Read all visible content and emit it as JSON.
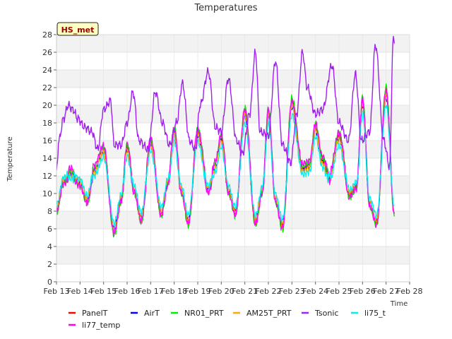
{
  "chart_data": {
    "type": "line",
    "title": "Temperatures",
    "station_label": "HS_met",
    "xlabel": "Time",
    "ylabel": "Temperature",
    "xlim": [
      13,
      28
    ],
    "ylim": [
      0,
      28
    ],
    "yticks": [
      0,
      2,
      4,
      6,
      8,
      10,
      12,
      14,
      16,
      18,
      20,
      22,
      24,
      26,
      28
    ],
    "xticks": [
      {
        "value": 13,
        "label": "Feb 13"
      },
      {
        "value": 14,
        "label": "Feb 14"
      },
      {
        "value": 15,
        "label": "Feb 15"
      },
      {
        "value": 16,
        "label": "Feb 16"
      },
      {
        "value": 17,
        "label": "Feb 17"
      },
      {
        "value": 18,
        "label": "Feb 18"
      },
      {
        "value": 19,
        "label": "Feb 19"
      },
      {
        "value": 20,
        "label": "Feb 20"
      },
      {
        "value": 21,
        "label": "Feb 21"
      },
      {
        "value": 22,
        "label": "Feb 22"
      },
      {
        "value": 23,
        "label": "Feb 23"
      },
      {
        "value": 24,
        "label": "Feb 24"
      },
      {
        "value": 25,
        "label": "Feb 25"
      },
      {
        "value": 26,
        "label": "Feb 26"
      },
      {
        "value": 27,
        "label": "Feb 27"
      },
      {
        "value": 28,
        "label": "Feb 28"
      }
    ],
    "base_x": [
      13.0,
      13.3,
      13.6,
      14.0,
      14.3,
      14.6,
      15.0,
      15.45,
      15.75,
      16.0,
      16.3,
      16.6,
      17.0,
      17.45,
      17.75,
      18.0,
      18.3,
      18.6,
      19.0,
      19.45,
      19.75,
      20.0,
      20.3,
      20.6,
      21.0,
      21.45,
      21.75,
      22.0,
      22.3,
      22.6,
      23.0,
      23.45,
      23.75,
      24.0,
      24.3,
      24.6,
      25.0,
      25.45,
      25.75,
      26.0,
      26.3,
      26.6,
      27.0,
      27.35
    ],
    "base_y": [
      8.3,
      11.5,
      12.2,
      11.3,
      9.3,
      12.5,
      14.7,
      6.0,
      9.5,
      14.9,
      10.5,
      7.3,
      15.5,
      8.0,
      11.5,
      16.7,
      10.5,
      7.0,
      16.6,
      10.5,
      13.0,
      16.0,
      10.5,
      8.0,
      18.8,
      7.0,
      10.5,
      18.8,
      9.5,
      6.5,
      19.8,
      12.7,
      13.0,
      17.2,
      13.5,
      11.8,
      16.2,
      10.0,
      11.0,
      20.0,
      9.0,
      7.0,
      21.0,
      8.0
    ],
    "tsonic_x": [
      13.0,
      13.1,
      13.3,
      13.5,
      13.7,
      13.9,
      14.2,
      14.5,
      14.75,
      15.0,
      15.3,
      15.45,
      15.75,
      16.0,
      16.25,
      16.5,
      16.9,
      17.2,
      17.5,
      17.8,
      18.1,
      18.35,
      18.65,
      18.9,
      19.1,
      19.45,
      19.75,
      20.0,
      20.3,
      20.65,
      20.9,
      21.2,
      21.45,
      21.65,
      22.0,
      22.3,
      22.6,
      22.95,
      23.2,
      23.45,
      23.65,
      24.0,
      24.3,
      24.7,
      25.0,
      25.4,
      25.7,
      25.95,
      26.3,
      26.55,
      26.9,
      27.15,
      27.3
    ],
    "tsonic_y": [
      12.5,
      16.0,
      18.5,
      20.0,
      19.5,
      18.5,
      17.5,
      17.0,
      15.0,
      19.5,
      20.5,
      15.5,
      15.5,
      18.0,
      21.5,
      16.0,
      15.0,
      21.5,
      18.0,
      15.5,
      18.0,
      22.5,
      16.0,
      15.0,
      20.0,
      23.8,
      17.5,
      17.0,
      23.0,
      16.0,
      14.5,
      19.0,
      26.0,
      17.0,
      16.5,
      25.0,
      15.5,
      13.5,
      19.0,
      26.0,
      22.0,
      19.0,
      19.5,
      24.5,
      18.0,
      16.0,
      23.5,
      16.0,
      17.0,
      26.8,
      16.0,
      13.0,
      27.3
    ],
    "series": [
      {
        "name": "PanelT",
        "color": "#ff0000"
      },
      {
        "name": "AirT",
        "color": "#0000ff"
      },
      {
        "name": "NR01_PRT",
        "color": "#00ee00"
      },
      {
        "name": "AM25T_PRT",
        "color": "#ffaa00"
      },
      {
        "name": "Tsonic",
        "color": "#a020f0"
      },
      {
        "name": "li75_t",
        "color": "#00eeee"
      },
      {
        "name": "li77_temp",
        "color": "#ff00ff"
      }
    ]
  }
}
